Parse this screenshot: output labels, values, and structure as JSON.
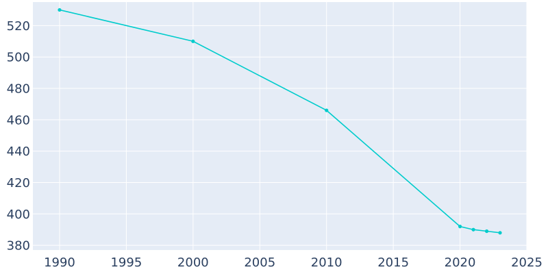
{
  "chart_data": {
    "type": "line",
    "title": "",
    "xlabel": "",
    "ylabel": "",
    "xlim": [
      1988,
      2025
    ],
    "ylim": [
      377,
      535
    ],
    "x_ticks": [
      1990,
      1995,
      2000,
      2005,
      2010,
      2015,
      2020,
      2025
    ],
    "y_ticks": [
      380,
      400,
      420,
      440,
      460,
      480,
      500,
      520
    ],
    "grid": true,
    "legend": "none",
    "colors": {
      "plot_background": "#e5ecf6",
      "grid": "#ffffff",
      "line": "#00cccc",
      "tick_text": "#2a3f5f"
    },
    "series": [
      {
        "x": [
          1990,
          2000,
          2010,
          2020,
          2021,
          2022,
          2023
        ],
        "y": [
          530,
          510,
          466,
          392,
          390,
          389,
          388
        ]
      }
    ]
  }
}
